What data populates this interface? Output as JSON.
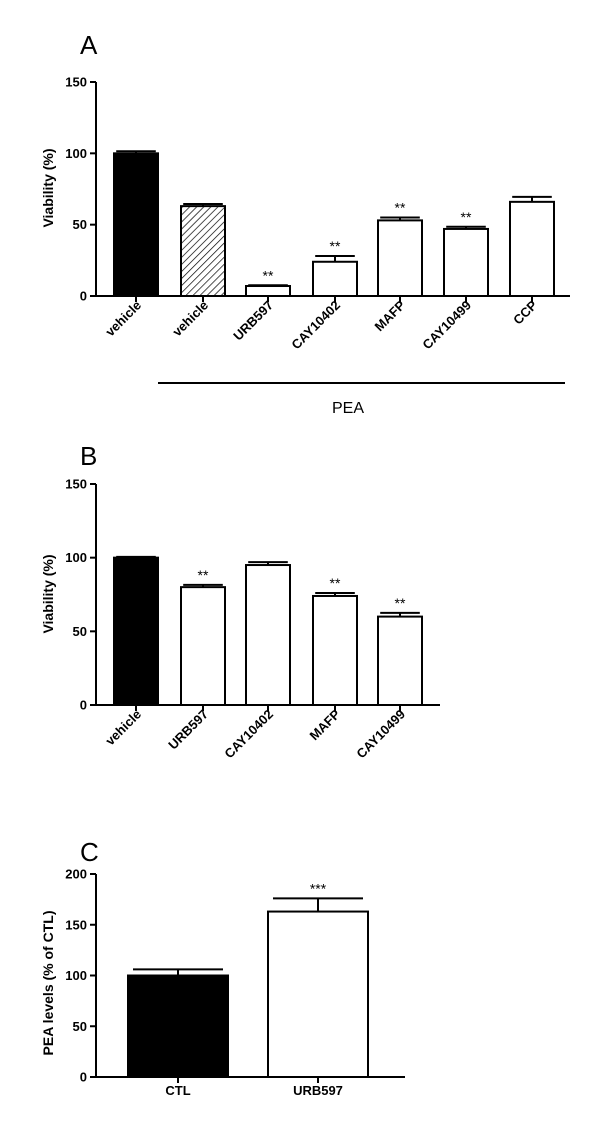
{
  "chart_data": [
    {
      "type": "bar",
      "panel_label": "A",
      "ylabel": "Viability (%)",
      "ylim": [
        0,
        150
      ],
      "yticks": [
        "0",
        "50",
        "100",
        "150"
      ],
      "categories": [
        "vehicle",
        "vehicle",
        "URB597",
        "CAY10402",
        "MAFP",
        "CAY10499",
        "CCP"
      ],
      "values": [
        100,
        63,
        7,
        24,
        53,
        47,
        66
      ],
      "errors": [
        1.5,
        1.5,
        0.5,
        4,
        2,
        1.5,
        3.5
      ],
      "fills": [
        "solid-black",
        "hatched",
        "white",
        "white",
        "white",
        "white",
        "white"
      ],
      "significance": [
        "",
        "",
        "**",
        "**",
        "**",
        "**",
        ""
      ],
      "group_label": "PEA",
      "group_bar_starts_at": "vehicle"
    },
    {
      "type": "bar",
      "panel_label": "B",
      "ylabel": "Viability (%)",
      "ylim": [
        0,
        150
      ],
      "yticks": [
        "0",
        "50",
        "100",
        "150"
      ],
      "categories": [
        "vehicle",
        "URB597",
        "CAY10402",
        "MAFP",
        "CAY10499"
      ],
      "values": [
        100,
        80,
        95,
        74,
        60
      ],
      "errors": [
        0.5,
        1.5,
        2,
        2,
        2.5
      ],
      "fills": [
        "solid-black",
        "white",
        "white",
        "white",
        "white"
      ],
      "significance": [
        "",
        "**",
        "",
        "**",
        "**"
      ]
    },
    {
      "type": "bar",
      "panel_label": "C",
      "ylabel": "PEA levels (% of CTL)",
      "ylim": [
        0,
        200
      ],
      "yticks": [
        "0",
        "50",
        "100",
        "150",
        "200"
      ],
      "categories": [
        "CTL",
        "URB597"
      ],
      "values": [
        100,
        163
      ],
      "errors": [
        6,
        13
      ],
      "fills": [
        "solid-black",
        "white"
      ],
      "significance": [
        "",
        "***"
      ]
    }
  ],
  "colors": {
    "ink": "#000000",
    "paper": "#ffffff"
  }
}
